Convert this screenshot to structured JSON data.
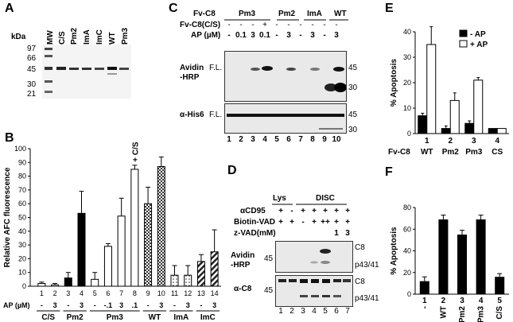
{
  "panel_labels": {
    "A": "A",
    "B": "B",
    "C": "C",
    "D": "D",
    "E": "E",
    "F": "F"
  },
  "panelA": {
    "kda_label": "kDa",
    "markers": [
      "97",
      "66",
      "45",
      "30",
      "21"
    ],
    "lanes": [
      "MW",
      "C/S",
      "Pm2",
      "ImA",
      "ImC",
      "WT",
      "Pm3"
    ]
  },
  "panelC": {
    "row_headers": [
      "Fv-C8",
      "Fv-C8(C/S)",
      "AP (µM)"
    ],
    "groups": [
      "Pm3",
      "Pm2",
      "ImA",
      "WT"
    ],
    "fvc8cs_values": [
      "-",
      "-",
      "-",
      "+",
      "-",
      "-",
      "-",
      "-",
      "-",
      "-"
    ],
    "ap_values": [
      "-",
      "0.1",
      "3",
      "0.1",
      "-",
      "3",
      "-",
      "3",
      "-",
      "3"
    ],
    "blot1_label": "Avidin\n-HRP",
    "blot2_label": "α-His6",
    "fl_label": "F.L.",
    "mw_right_1": [
      "45",
      "30"
    ],
    "mw_right_2": [
      "45",
      "30"
    ],
    "lane_numbers": [
      "1",
      "2",
      "3",
      "4",
      "5",
      "6",
      "7",
      "8",
      "9",
      "10"
    ]
  },
  "panelD": {
    "lys_label": "Lys",
    "disc_label": "DISC",
    "row_headers": [
      "αCD95",
      "Biotin-VAD",
      "z-VAD(mM)"
    ],
    "acd95": [
      "+",
      "-",
      "+",
      "+",
      "+",
      "+",
      "+"
    ],
    "biotin": [
      "+",
      "+",
      "-",
      "+",
      "++",
      "+",
      "+"
    ],
    "zvad": [
      "",
      "",
      "",
      "",
      "",
      "1",
      "3"
    ],
    "blot1_label": "Avidin\n-HRP",
    "blot2_label": "α-C8",
    "mw_left": "45",
    "band_labels": [
      "C8",
      "p43/41"
    ],
    "lane_numbers": [
      "1",
      "2",
      "3",
      "4",
      "5",
      "6",
      "7"
    ]
  },
  "chart_data": [
    {
      "panel": "B",
      "type": "bar",
      "ylabel": "Relative AFC fluorescence",
      "ylim": [
        0,
        100
      ],
      "yticks": [
        "0",
        "10",
        "20",
        "30",
        "40",
        "50",
        "60",
        "70",
        "80",
        "90",
        "100"
      ],
      "lane_numbers": [
        "1",
        "2",
        "3",
        "4",
        "5",
        "6",
        "7",
        "8",
        "9",
        "10",
        "11",
        "12",
        "13",
        "14"
      ],
      "ap_row_label": "AP (µM)",
      "ap_values": [
        "-",
        "3",
        "-",
        "3",
        "-",
        "-.1",
        "3",
        ".1",
        "-",
        "3",
        "-",
        "3",
        "-",
        "3"
      ],
      "groups": [
        "C/S",
        "Pm2",
        "Pm3",
        "WT",
        "ImA",
        "ImC"
      ],
      "annotation": "+ C/S",
      "values": [
        2,
        1,
        6,
        53,
        5,
        29,
        51,
        85,
        60,
        87,
        8,
        8,
        18,
        25
      ],
      "errors": [
        1,
        1,
        4,
        16,
        5,
        2,
        13,
        3,
        12,
        7,
        7,
        7,
        5,
        16
      ],
      "fills": [
        "white",
        "white",
        "black",
        "black",
        "white",
        "white",
        "white",
        "white",
        "check",
        "check",
        "dots",
        "dots",
        "stripe",
        "stripe"
      ]
    },
    {
      "panel": "E",
      "type": "bar",
      "ylabel": "% Apoptosis",
      "ylim": [
        0,
        40
      ],
      "yticks": [
        "0",
        "10",
        "20",
        "30",
        "40"
      ],
      "legend": [
        "- AP",
        "+ AP"
      ],
      "categories": [
        "WT",
        "Pm2",
        "Pm3",
        "CS"
      ],
      "cat_numbers": [
        "1",
        "2",
        "3",
        "4"
      ],
      "x_row_label": "Fv-C8",
      "series": [
        {
          "name": "- AP",
          "values": [
            7,
            2,
            4,
            2
          ],
          "errors": [
            1,
            1,
            1,
            0
          ]
        },
        {
          "name": "+ AP",
          "values": [
            35,
            13,
            21,
            2
          ],
          "errors": [
            7,
            3,
            1,
            0
          ]
        }
      ]
    },
    {
      "panel": "F",
      "type": "bar",
      "ylabel": "% Apoptosis",
      "ylim": [
        0,
        80
      ],
      "yticks": [
        "0",
        "20",
        "40",
        "60",
        "80"
      ],
      "categories": [
        "-",
        "WT",
        "Pm2",
        "Pm3",
        "C/S"
      ],
      "cat_numbers": [
        "1",
        "2",
        "3",
        "4",
        "5"
      ],
      "values": [
        12,
        69,
        55,
        69,
        16
      ],
      "errors": [
        4,
        4,
        4,
        4,
        3
      ]
    }
  ]
}
